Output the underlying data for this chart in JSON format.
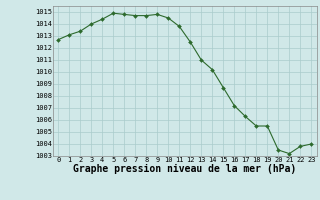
{
  "x": [
    0,
    1,
    2,
    3,
    4,
    5,
    6,
    7,
    8,
    9,
    10,
    11,
    12,
    13,
    14,
    15,
    16,
    17,
    18,
    19,
    20,
    21,
    22,
    23
  ],
  "y": [
    1012.7,
    1013.1,
    1013.4,
    1014.0,
    1014.4,
    1014.9,
    1014.8,
    1014.7,
    1014.7,
    1014.8,
    1014.5,
    1013.8,
    1012.5,
    1011.0,
    1010.2,
    1008.7,
    1007.2,
    1006.3,
    1005.5,
    1005.5,
    1003.5,
    1003.2,
    1003.8,
    1004.0
  ],
  "line_color": "#2d6a2d",
  "marker_color": "#2d6a2d",
  "bg_color": "#d0e8e8",
  "grid_color": "#aacccc",
  "xlabel": "Graphe pression niveau de la mer (hPa)",
  "ylim": [
    1003,
    1015.5
  ],
  "xlim": [
    -0.5,
    23.5
  ],
  "yticks": [
    1003,
    1004,
    1005,
    1006,
    1007,
    1008,
    1009,
    1010,
    1011,
    1012,
    1013,
    1014,
    1015
  ],
  "xticks": [
    0,
    1,
    2,
    3,
    4,
    5,
    6,
    7,
    8,
    9,
    10,
    11,
    12,
    13,
    14,
    15,
    16,
    17,
    18,
    19,
    20,
    21,
    22,
    23
  ],
  "tick_fontsize": 5.0,
  "xlabel_fontsize": 7.0
}
